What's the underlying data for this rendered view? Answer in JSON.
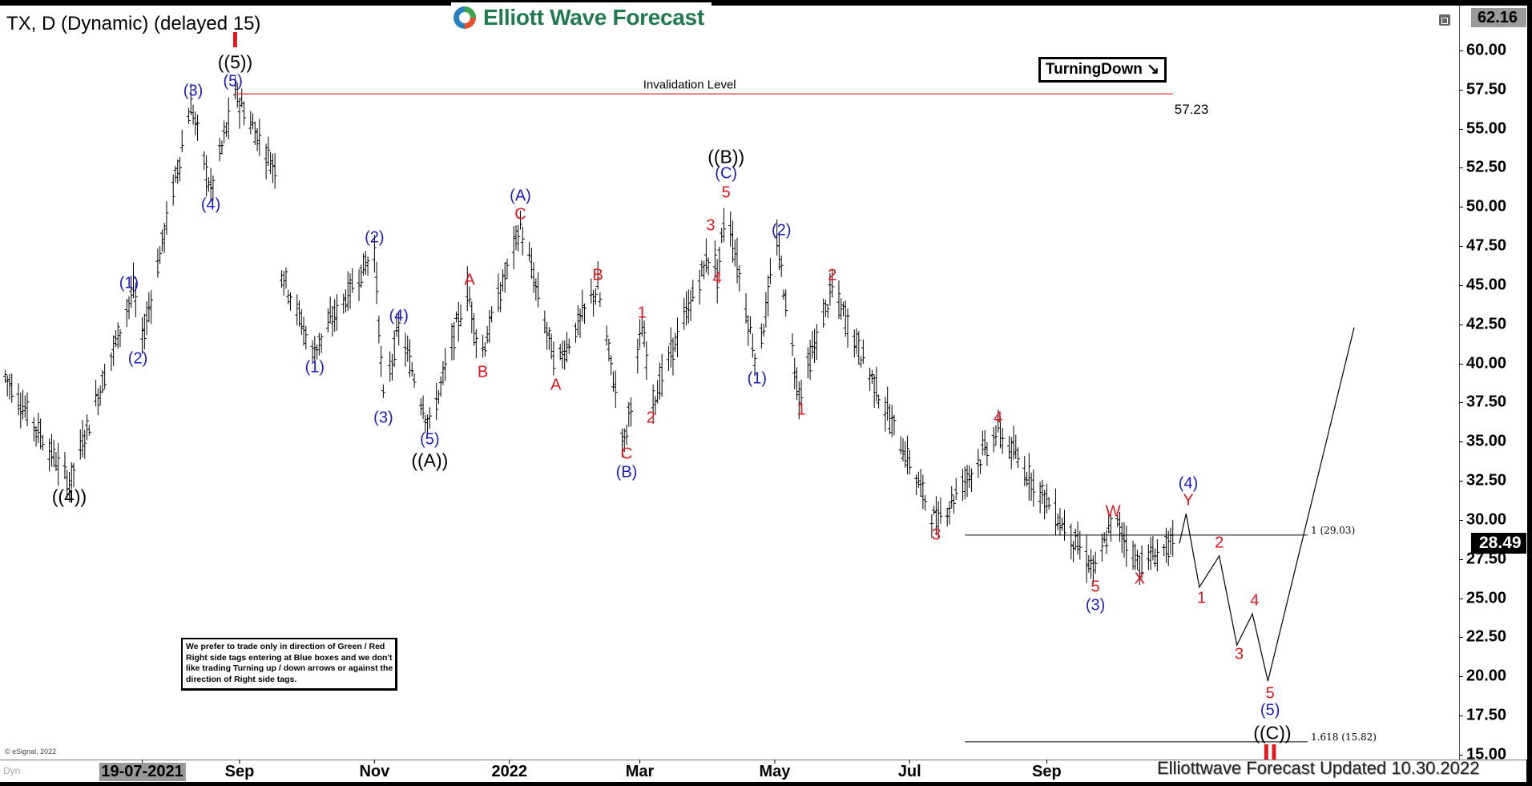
{
  "header": {
    "title": "TX, D (Dynamic) (delayed 15)",
    "logo_text": "Elliott Wave Forecast",
    "turning_label": "TurningDown",
    "turning_icon": "arrow-down-right-icon"
  },
  "note": "We prefer to trade only in direction of Green / Red Right side tags entering at Blue boxes and we don't like trading Turning up / down arrows or against the direction of Right side tags.",
  "footer": {
    "copyright": "© eSignal, 2022",
    "updated": "Elliottwave Forecast Updated 10.30.2022",
    "dyn": "Dyn"
  },
  "colors": {
    "red": "#e8141c",
    "blue": "#1a1acc",
    "black": "#000000",
    "invalidation": "#e03030"
  },
  "chart_data": {
    "type": "ohlc",
    "symbol": "TX",
    "interval": "D",
    "y_ticks": [
      "15.00",
      "17.50",
      "20.00",
      "22.50",
      "25.00",
      "27.50",
      "30.00",
      "32.50",
      "35.00",
      "37.50",
      "40.00",
      "42.50",
      "45.00",
      "47.50",
      "50.00",
      "52.50",
      "55.00",
      "57.50",
      "60.00"
    ],
    "ylim": [
      15,
      62.16
    ],
    "y_high_label": "62.16",
    "last_price": "28.49",
    "x_ticks": [
      {
        "label": "19-07-2021",
        "date": "2021-07-19",
        "current": true
      },
      {
        "label": "Sep",
        "date": "2021-09-01"
      },
      {
        "label": "Nov",
        "date": "2021-11-01"
      },
      {
        "label": "2022",
        "date": "2022-01-01"
      },
      {
        "label": "Mar",
        "date": "2022-03-01"
      },
      {
        "label": "May",
        "date": "2022-05-01"
      },
      {
        "label": "Jul",
        "date": "2022-07-01"
      },
      {
        "label": "Sep",
        "date": "2022-09-01"
      }
    ],
    "price_path": [
      [
        "2021-05-18",
        39.2
      ],
      [
        "2021-06-16",
        32.4
      ],
      [
        "2021-07-15",
        44.8
      ],
      [
        "2021-07-19",
        41.5
      ],
      [
        "2021-08-10",
        56.6
      ],
      [
        "2021-08-19",
        51.0
      ],
      [
        "2021-08-30",
        57.23
      ],
      [
        "2021-09-17",
        52.5
      ],
      [
        "2021-09-20",
        46.0
      ],
      [
        "2021-10-04",
        40.7
      ],
      [
        "2021-11-01",
        47.3
      ],
      [
        "2021-11-05",
        37.6
      ],
      [
        "2021-11-12",
        42.3
      ],
      [
        "2021-11-26",
        36.0
      ],
      [
        "2021-12-13",
        44.8
      ],
      [
        "2021-12-19",
        40.4
      ],
      [
        "2022-01-06",
        48.8
      ],
      [
        "2022-01-22",
        39.8
      ],
      [
        "2022-02-10",
        44.9
      ],
      [
        "2022-02-22",
        34.8
      ],
      [
        "2022-03-02",
        42.3
      ],
      [
        "2022-03-07",
        37.6
      ],
      [
        "2022-04-03",
        47.6
      ],
      [
        "2022-04-05",
        45.4
      ],
      [
        "2022-04-09",
        50.1
      ],
      [
        "2022-04-23",
        39.8
      ],
      [
        "2022-05-02",
        47.9
      ],
      [
        "2022-05-12",
        37.9
      ],
      [
        "2022-05-27",
        44.8
      ],
      [
        "2022-07-13",
        29.8
      ],
      [
        "2022-08-10",
        35.7
      ],
      [
        "2022-09-23",
        26.7
      ],
      [
        "2022-10-01",
        30.1
      ],
      [
        "2022-10-13",
        27.2
      ],
      [
        "2022-10-28",
        28.49
      ]
    ],
    "projection_path": [
      [
        "2022-10-31",
        28.5
      ],
      [
        "2022-11-03",
        30.4
      ],
      [
        "2022-11-09",
        25.7
      ],
      [
        "2022-11-18",
        27.7
      ],
      [
        "2022-11-26",
        22.0
      ],
      [
        "2022-12-03",
        24.0
      ],
      [
        "2022-12-10",
        19.7
      ],
      [
        "2023-01-18",
        42.3
      ]
    ],
    "invalidation": {
      "label": "Invalidation Level",
      "price": 57.23,
      "price_label": "57.23",
      "from": "2021-08-30",
      "to": "2022-10-28",
      "label_date": "2022-03-17",
      "label_price": 57.8,
      "price_label_date": "2022-11-05",
      "price_label_price": 56.2
    },
    "fib_levels": [
      {
        "label": "1 (29.03)",
        "price": 29.03,
        "from": "2022-07-26",
        "to": "2022-12-28"
      },
      {
        "label": "1.618 (15.82)",
        "price": 15.82,
        "from": "2022-07-26",
        "to": "2022-12-28"
      }
    ],
    "wave_labels": [
      {
        "text": "((4))",
        "color": "black",
        "date": "2021-06-16",
        "price": 31.5
      },
      {
        "text": "(1)",
        "color": "blue",
        "date": "2021-07-13",
        "price": 45.1
      },
      {
        "text": "(2)",
        "color": "blue",
        "date": "2021-07-17",
        "price": 40.3
      },
      {
        "text": "(3)",
        "color": "blue",
        "date": "2021-08-11",
        "price": 57.4
      },
      {
        "text": "(4)",
        "color": "blue",
        "date": "2021-08-19",
        "price": 50.1
      },
      {
        "text": "(5)",
        "color": "blue",
        "date": "2021-08-29",
        "price": 58.0
      },
      {
        "text": "((5))",
        "color": "black",
        "date": "2021-08-30",
        "price": 59.25
      },
      {
        "text": "I",
        "color": "red",
        "date": "2021-08-30",
        "price": 60.6
      },
      {
        "text": "(1)",
        "color": "blue",
        "date": "2021-10-05",
        "price": 39.7
      },
      {
        "text": "(2)",
        "color": "blue",
        "date": "2021-11-01",
        "price": 48.0
      },
      {
        "text": "(3)",
        "color": "blue",
        "date": "2021-11-05",
        "price": 36.5
      },
      {
        "text": "(4)",
        "color": "blue",
        "date": "2021-11-12",
        "price": 43.0
      },
      {
        "text": "(5)",
        "color": "blue",
        "date": "2021-11-26",
        "price": 35.1
      },
      {
        "text": "((A))",
        "color": "black",
        "date": "2021-11-26",
        "price": 33.8
      },
      {
        "text": "A",
        "color": "red",
        "date": "2021-12-14",
        "price": 45.3
      },
      {
        "text": "B",
        "color": "red",
        "date": "2021-12-20",
        "price": 39.4
      },
      {
        "text": "(A)",
        "color": "blue",
        "date": "2022-01-06",
        "price": 50.7
      },
      {
        "text": "C",
        "color": "red",
        "date": "2022-01-06",
        "price": 49.5
      },
      {
        "text": "A",
        "color": "red",
        "date": "2022-01-22",
        "price": 38.6
      },
      {
        "text": "B",
        "color": "red",
        "date": "2022-02-10",
        "price": 45.6
      },
      {
        "text": "C",
        "color": "red",
        "date": "2022-02-23",
        "price": 34.2
      },
      {
        "text": "(B)",
        "color": "blue",
        "date": "2022-02-23",
        "price": 33.0
      },
      {
        "text": "1",
        "color": "red",
        "date": "2022-03-02",
        "price": 43.2
      },
      {
        "text": "2",
        "color": "red",
        "date": "2022-03-06",
        "price": 36.5
      },
      {
        "text": "3",
        "color": "red",
        "date": "2022-04-02",
        "price": 48.8
      },
      {
        "text": "4",
        "color": "red",
        "date": "2022-04-05",
        "price": 45.4
      },
      {
        "text": "5",
        "color": "red",
        "date": "2022-04-09",
        "price": 50.9
      },
      {
        "text": "(C)",
        "color": "blue",
        "date": "2022-04-09",
        "price": 52.1
      },
      {
        "text": "((B))",
        "color": "black",
        "date": "2022-04-09",
        "price": 53.2
      },
      {
        "text": "(1)",
        "color": "blue",
        "date": "2022-04-23",
        "price": 39.0
      },
      {
        "text": "(2)",
        "color": "blue",
        "date": "2022-05-04",
        "price": 48.5
      },
      {
        "text": "1",
        "color": "red",
        "date": "2022-05-13",
        "price": 37.0
      },
      {
        "text": "2",
        "color": "red",
        "date": "2022-05-27",
        "price": 45.6
      },
      {
        "text": "3",
        "color": "red",
        "date": "2022-07-13",
        "price": 29.0
      },
      {
        "text": "4",
        "color": "red",
        "date": "2022-08-10",
        "price": 36.5
      },
      {
        "text": "5",
        "color": "red",
        "date": "2022-09-23",
        "price": 25.7
      },
      {
        "text": "(3)",
        "color": "blue",
        "date": "2022-09-23",
        "price": 24.5
      },
      {
        "text": "W",
        "color": "red",
        "date": "2022-10-01",
        "price": 30.5
      },
      {
        "text": "X",
        "color": "red",
        "date": "2022-10-13",
        "price": 26.2
      },
      {
        "text": "(4)",
        "color": "blue",
        "date": "2022-11-04",
        "price": 32.3
      },
      {
        "text": "Y",
        "color": "red",
        "date": "2022-11-04",
        "price": 31.2
      },
      {
        "text": "1",
        "color": "red",
        "date": "2022-11-10",
        "price": 25.0
      },
      {
        "text": "2",
        "color": "red",
        "date": "2022-11-18",
        "price": 28.5
      },
      {
        "text": "3",
        "color": "red",
        "date": "2022-11-27",
        "price": 21.4
      },
      {
        "text": "4",
        "color": "red",
        "date": "2022-12-04",
        "price": 24.8
      },
      {
        "text": "5",
        "color": "red",
        "date": "2022-12-11",
        "price": 18.9
      },
      {
        "text": "(5)",
        "color": "blue",
        "date": "2022-12-11",
        "price": 17.8
      },
      {
        "text": "((C))",
        "color": "black",
        "date": "2022-12-12",
        "price": 16.4
      },
      {
        "text": "II",
        "color": "red",
        "date": "2022-12-11",
        "price": 15.1
      }
    ]
  }
}
